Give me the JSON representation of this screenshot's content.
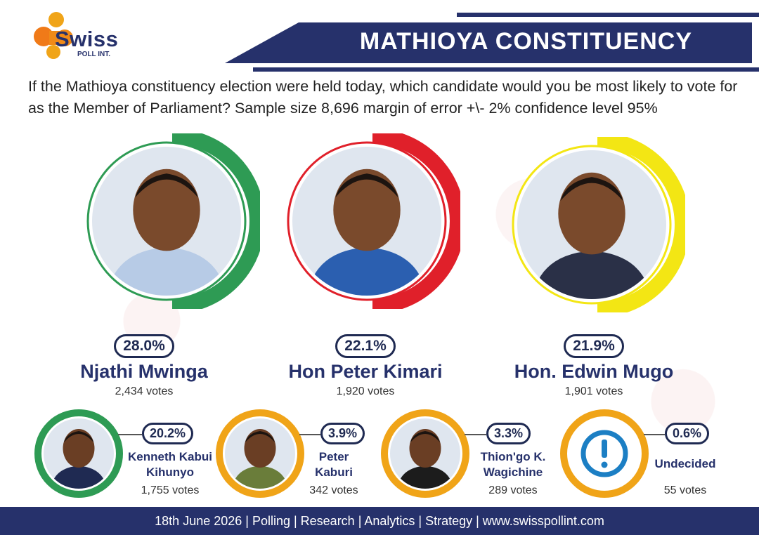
{
  "brand": {
    "name": "Swiss",
    "sub": "POLL INT."
  },
  "header": {
    "title": "MATHIOYA CONSTITUENCY"
  },
  "question": "If the Mathioya constituency election were held today, which candidate would you be most likely to vote for as the Member of Parliament? Sample size 8,696 margin of error +\\- 2% confidence level 95%",
  "colors": {
    "navy": "#26316b",
    "green": "#2e9b54",
    "red": "#e0202a",
    "yellow": "#f3e614",
    "orange": "#f0a418"
  },
  "chart_data": {
    "type": "bar",
    "title": "",
    "categories": [
      "Njathi Mwinga",
      "Hon Peter Kimari",
      "Hon. Edwin Mugo",
      "Kenneth Kabui Kihunyo",
      "Peter Kaburi",
      "Thion'go K. Wagichine",
      "Undecided"
    ],
    "series": [
      {
        "values": [
          28.0,
          22.1,
          21.9,
          20.2,
          3.9,
          3.3,
          0.6
        ]
      }
    ],
    "votes": [
      2434,
      1920,
      1901,
      1755,
      342,
      289,
      55
    ],
    "ylim": [
      0,
      100
    ]
  },
  "main_candidates": [
    {
      "pct": "28.0%",
      "name": "Njathi Mwinga",
      "votes": "2,434 votes",
      "ring": "#2e9b54",
      "icon": "candidate-portrait"
    },
    {
      "pct": "22.1%",
      "name": "Hon Peter Kimari",
      "votes": "1,920 votes",
      "ring": "#e0202a",
      "icon": "candidate-portrait"
    },
    {
      "pct": "21.9%",
      "name": "Hon. Edwin Mugo",
      "votes": "1,901 votes",
      "ring": "#f3e614",
      "icon": "candidate-portrait"
    }
  ],
  "minor_candidates": [
    {
      "pct": "20.2%",
      "name1": "Kenneth Kabui",
      "name2": "Kihunyo",
      "votes": "1,755 votes",
      "ring": "#2e9b54"
    },
    {
      "pct": "3.9%",
      "name1": "Peter",
      "name2": "Kaburi",
      "votes": "342 votes",
      "ring": "#f0a418"
    },
    {
      "pct": "3.3%",
      "name1": "Thion'go K.",
      "name2": "Wagichine",
      "votes": "289 votes",
      "ring": "#f0a418"
    },
    {
      "pct": "0.6%",
      "name1": "Undecided",
      "name2": "",
      "votes": "55 votes",
      "ring": "#f0a418",
      "icon": "exclamation-icon"
    }
  ],
  "footer": "18th June 2026 | Polling | Research | Analytics | Strategy | www.swisspollint.com"
}
